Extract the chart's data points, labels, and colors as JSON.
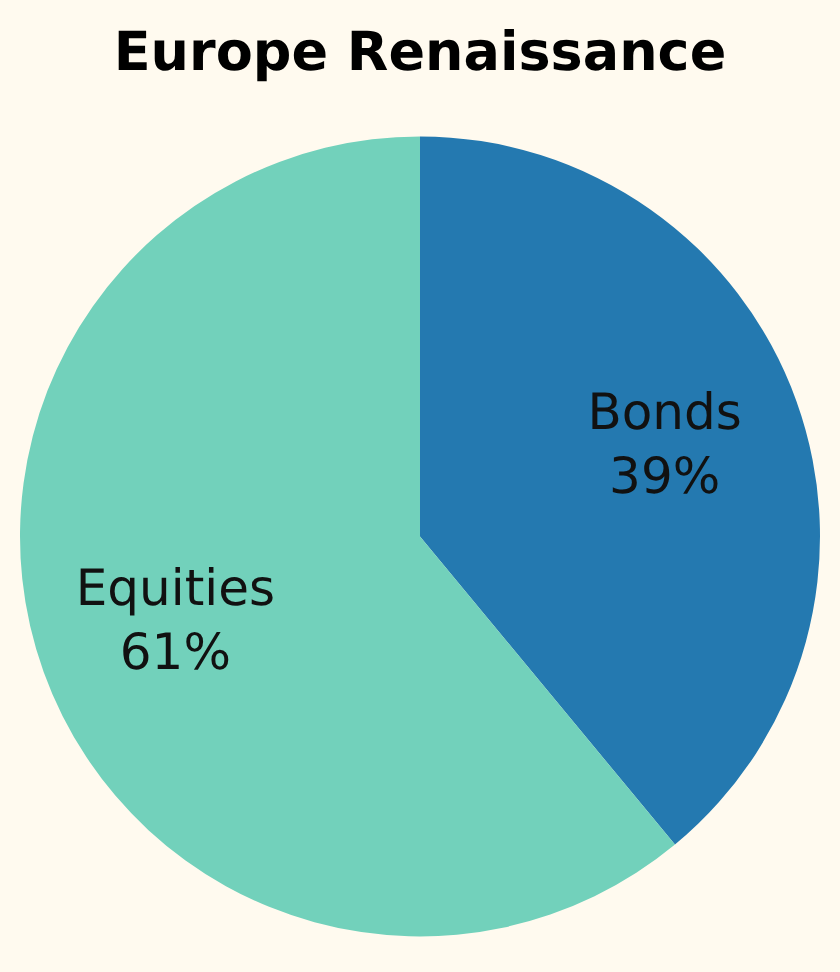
{
  "chart_data": {
    "type": "pie",
    "title": "Europe Renaissance",
    "categories": [
      "Bonds",
      "Equities"
    ],
    "values": [
      39,
      61
    ],
    "value_labels": [
      "39%",
      "61%"
    ],
    "colors": [
      "#2479b0",
      "#72d1bb"
    ],
    "legend": false
  }
}
